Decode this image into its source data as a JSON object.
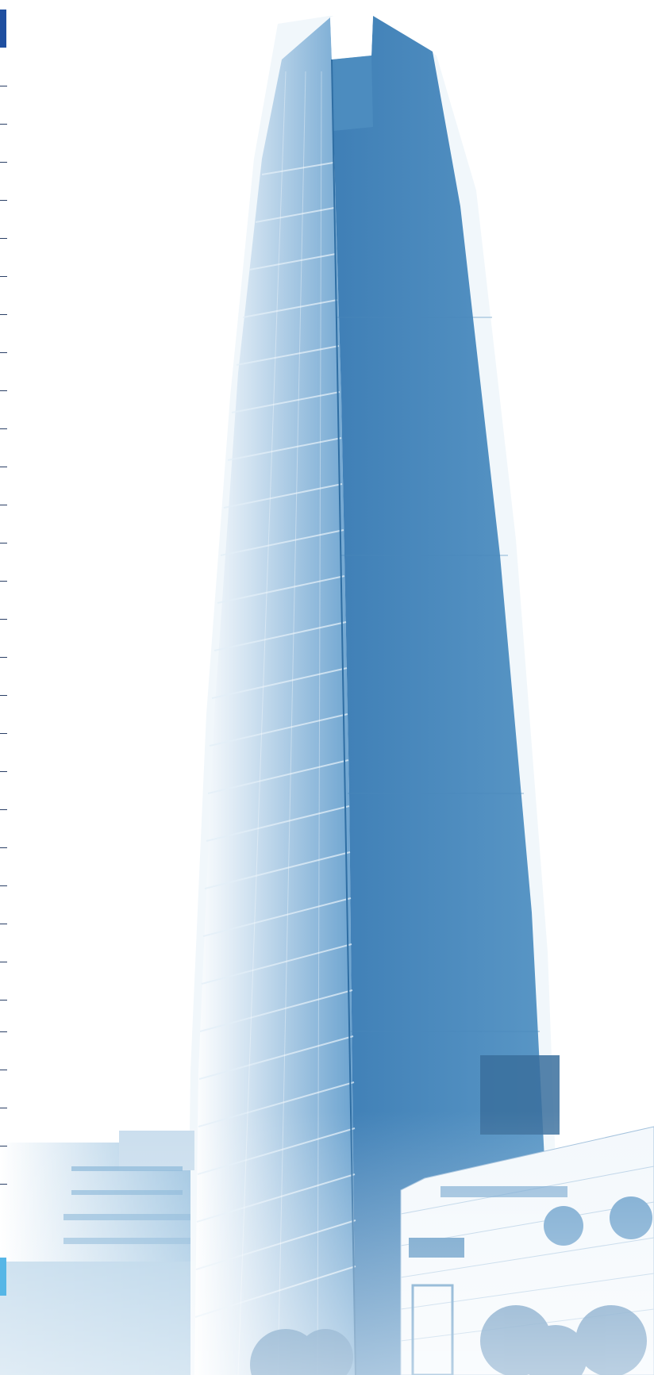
{
  "page": {
    "background": "#ffffff"
  },
  "palette": {
    "tower_light": "#9ec4e0",
    "tower_mid": "#5f9cc8",
    "tower_dark": "#3f7fb6",
    "window_line": "#dcebf6",
    "foreground_building": "#eef4fa",
    "accent_tab_top": "#1f4fa0",
    "accent_tab_bottom": "#56b6e6",
    "tick_color": "#2a3f66"
  },
  "margin_ticks_count": 30
}
